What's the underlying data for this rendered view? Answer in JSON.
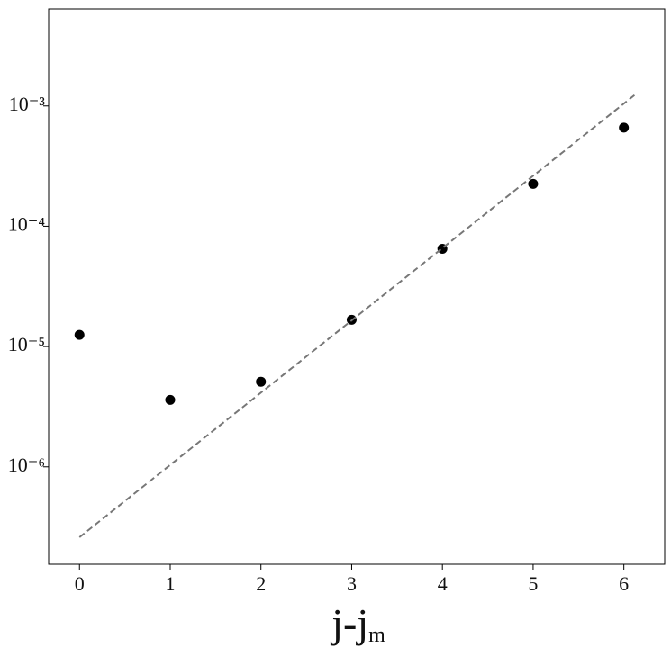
{
  "chart_data": {
    "type": "scatter",
    "xlabel": "j-j",
    "xlabel_sub": "m",
    "xlim": [
      -0.34,
      6.45
    ],
    "xticks": [
      0,
      1,
      2,
      3,
      4,
      5,
      6
    ],
    "ylim": [
      1.55e-07,
      0.0064
    ],
    "ylog": true,
    "yticks": [
      {
        "value": 0.001,
        "label": "10⁻³"
      },
      {
        "value": 0.0001,
        "label": "10⁻⁴"
      },
      {
        "value": 1e-05,
        "label": "10⁻⁵"
      },
      {
        "value": 1e-06,
        "label": "10⁻⁶"
      }
    ],
    "series": [
      {
        "color": "#000000",
        "x": [
          0,
          1,
          2,
          3,
          4,
          5,
          6
        ],
        "values": [
          1.25e-05,
          3.6e-06,
          5.1e-06,
          1.67e-05,
          6.5e-05,
          0.000225,
          0.00066
        ]
      },
      {
        "type": "line",
        "style": "dashed",
        "color": "#777777",
        "x": [
          0,
          6.14
        ],
        "values": [
          2.6e-07,
          0.00127
        ]
      }
    ]
  }
}
